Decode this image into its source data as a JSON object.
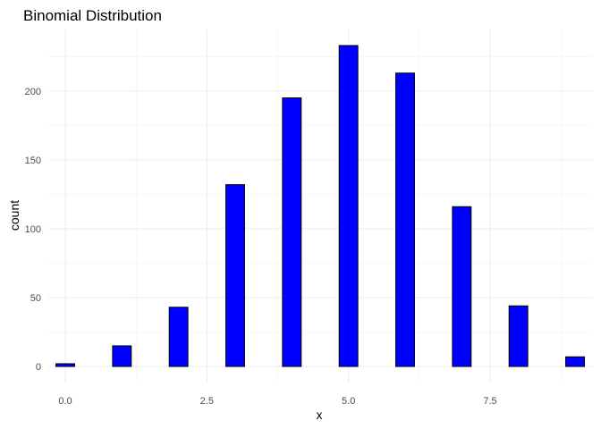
{
  "chart_data": {
    "type": "bar",
    "title": "Binomial Distribution",
    "xlabel": "x",
    "ylabel": "count",
    "x": [
      0,
      1,
      2,
      3,
      4,
      5,
      6,
      7,
      8,
      9
    ],
    "values": [
      2,
      15,
      43,
      132,
      195,
      233,
      213,
      116,
      44,
      7
    ],
    "xlim": [
      -0.3,
      9.3
    ],
    "ylim": [
      -11.65,
      244.65
    ],
    "x_ticks": [
      0,
      2.5,
      5,
      7.5
    ],
    "x_tick_labels": [
      "0.0",
      "2.5",
      "5.0",
      "7.5"
    ],
    "y_ticks": [
      0,
      50,
      100,
      150,
      200
    ],
    "y_tick_labels": [
      "0",
      "50",
      "100",
      "150",
      "200"
    ],
    "grid": true,
    "bar_fill": "#0000ff",
    "bar_stroke": "#000000"
  }
}
